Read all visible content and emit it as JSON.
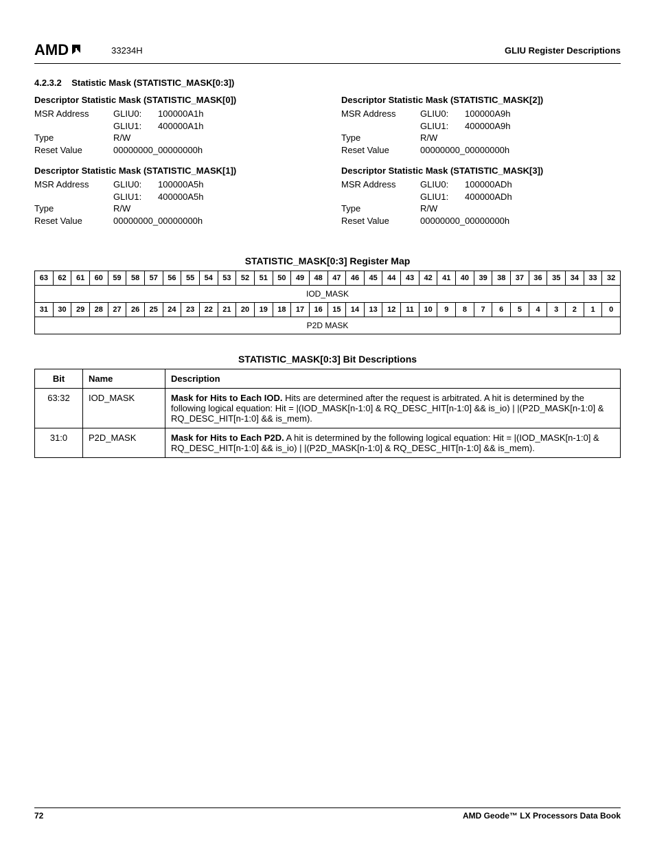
{
  "header": {
    "logo_text": "AMD",
    "doc_code": "33234H",
    "right_text": "GLIU Register Descriptions"
  },
  "section": {
    "number": "4.2.3.2",
    "title": "Statistic Mask (STATISTIC_MASK[0:3])"
  },
  "descriptors": [
    {
      "title": "Descriptor Statistic Mask (STATISTIC_MASK[0])",
      "msr_label": "MSR Address",
      "gliu0_label": "GLIU0:",
      "gliu0_val": "100000A1h",
      "gliu1_label": "GLIU1:",
      "gliu1_val": "400000A1h",
      "type_label": "Type",
      "type_val": "R/W",
      "reset_label": "Reset Value",
      "reset_val": "00000000_00000000h"
    },
    {
      "title": "Descriptor Statistic Mask (STATISTIC_MASK[1])",
      "msr_label": "MSR Address",
      "gliu0_label": "GLIU0:",
      "gliu0_val": "100000A5h",
      "gliu1_label": "GLIU1:",
      "gliu1_val": "400000A5h",
      "type_label": "Type",
      "type_val": "R/W",
      "reset_label": "Reset Value",
      "reset_val": "00000000_00000000h"
    },
    {
      "title": "Descriptor Statistic Mask (STATISTIC_MASK[2])",
      "msr_label": "MSR Address",
      "gliu0_label": "GLIU0:",
      "gliu0_val": "100000A9h",
      "gliu1_label": "GLIU1:",
      "gliu1_val": "400000A9h",
      "type_label": "Type",
      "type_val": "R/W",
      "reset_label": "Reset Value",
      "reset_val": "00000000_00000000h"
    },
    {
      "title": "Descriptor Statistic Mask (STATISTIC_MASK[3])",
      "msr_label": "MSR Address",
      "gliu0_label": "GLIU0:",
      "gliu0_val": "100000ADh",
      "gliu1_label": "GLIU1:",
      "gliu1_val": "400000ADh",
      "type_label": "Type",
      "type_val": "R/W",
      "reset_label": "Reset Value",
      "reset_val": "00000000_00000000h"
    }
  ],
  "regmap": {
    "title": "STATISTIC_MASK[0:3] Register Map",
    "row1_bits": [
      "63",
      "62",
      "61",
      "60",
      "59",
      "58",
      "57",
      "56",
      "55",
      "54",
      "53",
      "52",
      "51",
      "50",
      "49",
      "48",
      "47",
      "46",
      "45",
      "44",
      "43",
      "42",
      "41",
      "40",
      "39",
      "38",
      "37",
      "36",
      "35",
      "34",
      "33",
      "32"
    ],
    "row1_field": "IOD_MASK",
    "row2_bits": [
      "31",
      "30",
      "29",
      "28",
      "27",
      "26",
      "25",
      "24",
      "23",
      "22",
      "21",
      "20",
      "19",
      "18",
      "17",
      "16",
      "15",
      "14",
      "13",
      "12",
      "11",
      "10",
      "9",
      "8",
      "7",
      "6",
      "5",
      "4",
      "3",
      "2",
      "1",
      "0"
    ],
    "row2_field": "P2D MASK"
  },
  "bitdesc": {
    "title": "STATISTIC_MASK[0:3] Bit Descriptions",
    "headers": {
      "bit": "Bit",
      "name": "Name",
      "desc": "Description"
    },
    "rows": [
      {
        "bit": "63:32",
        "name": "IOD_MASK",
        "desc_bold": "Mask for Hits to Each IOD.",
        "desc_rest": " Hits are determined after the request is arbitrated. A hit is determined by the following logical equation: Hit = |(IOD_MASK[n-1:0] & RQ_DESC_HIT[n-1:0] && is_io) |   |(P2D_MASK[n-1:0] & RQ_DESC_HIT[n-1:0] && is_mem)."
      },
      {
        "bit": "31:0",
        "name": "P2D_MASK",
        "desc_bold": "Mask for Hits to Each P2D.",
        "desc_rest": " A hit is determined by the following logical equation: Hit = |(IOD_MASK[n-1:0] & RQ_DESC_HIT[n-1:0] && is_io) |   |(P2D_MASK[n-1:0] & RQ_DESC_HIT[n-1:0] && is_mem)."
      }
    ]
  },
  "footer": {
    "page_number": "72",
    "right_text": "AMD Geode™ LX Processors Data Book"
  }
}
